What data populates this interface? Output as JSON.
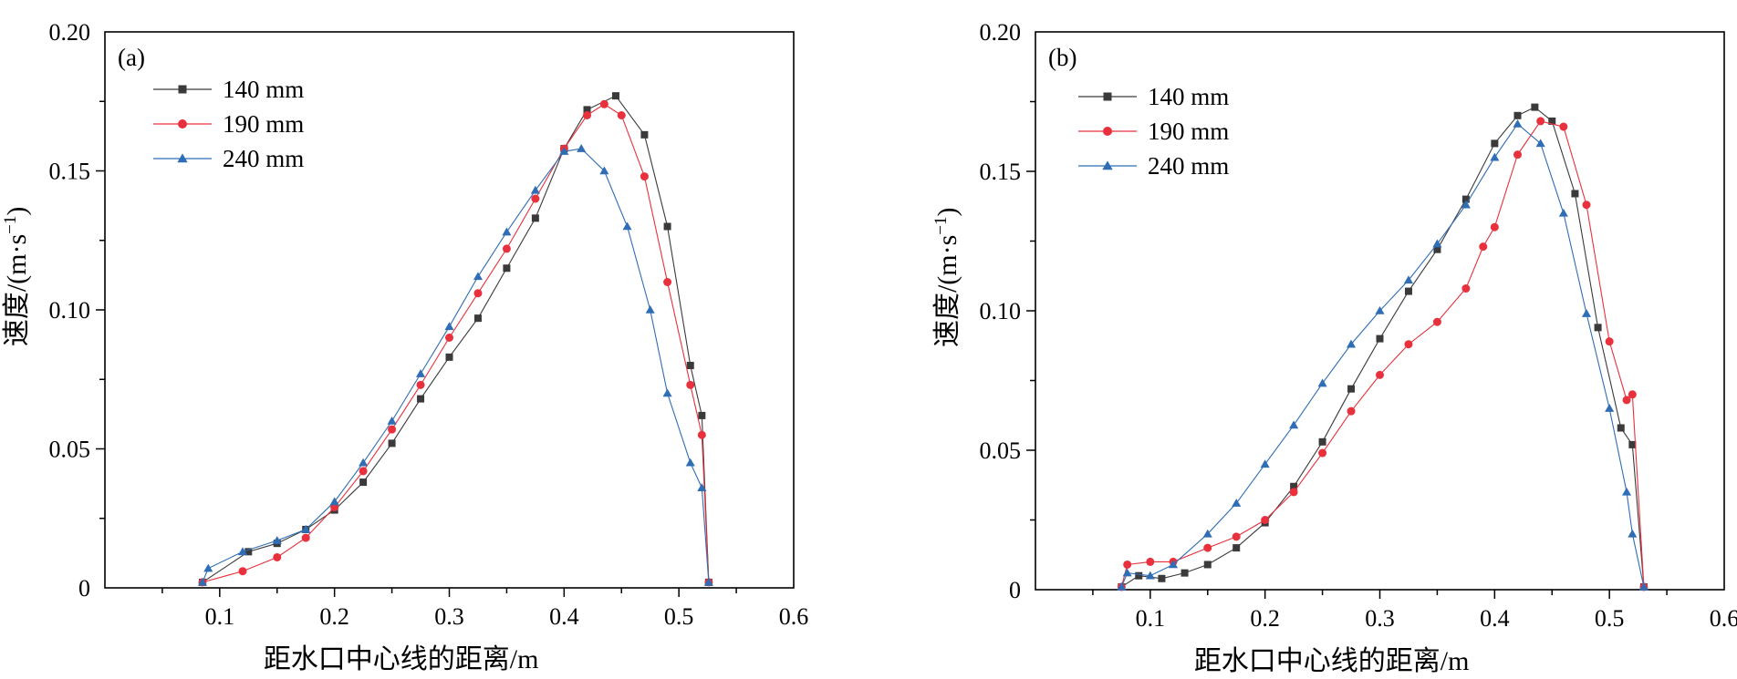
{
  "chart_data": [
    {
      "type": "line",
      "panel_label": "(a)",
      "xlabel": "距水口中心线的距离/m",
      "ylabel": "速度/(m·s⁻¹)",
      "ylabel_main": "速度/(m·s",
      "ylabel_sup": "−1",
      "ylabel_tail": ")",
      "xlim": [
        0,
        0.6
      ],
      "ylim": [
        0,
        0.2
      ],
      "xticks": [
        0.1,
        0.2,
        0.3,
        0.4,
        0.5,
        0.6
      ],
      "xtick_labels": [
        "0.1",
        "0.2",
        "0.3",
        "0.4",
        "0.5",
        "0.6"
      ],
      "yticks": [
        0,
        0.05,
        0.1,
        0.15,
        0.2
      ],
      "ytick_labels": [
        "0",
        "0.05",
        "0.10",
        "0.15",
        "0.20"
      ],
      "legend_position": "top-left",
      "series": [
        {
          "name": "140 mm",
          "color": "#3a3a3a",
          "marker": "square",
          "x": [
            0.085,
            0.125,
            0.15,
            0.175,
            0.2,
            0.225,
            0.25,
            0.275,
            0.3,
            0.325,
            0.35,
            0.375,
            0.4,
            0.42,
            0.445,
            0.47,
            0.49,
            0.51,
            0.52,
            0.526
          ],
          "y": [
            0.002,
            0.013,
            0.016,
            0.021,
            0.028,
            0.038,
            0.052,
            0.068,
            0.083,
            0.097,
            0.115,
            0.133,
            0.158,
            0.172,
            0.177,
            0.163,
            0.13,
            0.08,
            0.062,
            0.002
          ]
        },
        {
          "name": "190 mm",
          "color": "#e8313c",
          "marker": "circle",
          "x": [
            0.085,
            0.12,
            0.15,
            0.175,
            0.2,
            0.225,
            0.25,
            0.275,
            0.3,
            0.325,
            0.35,
            0.375,
            0.4,
            0.42,
            0.435,
            0.45,
            0.47,
            0.49,
            0.51,
            0.52,
            0.526
          ],
          "y": [
            0.002,
            0.006,
            0.011,
            0.018,
            0.029,
            0.042,
            0.057,
            0.073,
            0.09,
            0.106,
            0.122,
            0.14,
            0.158,
            0.17,
            0.174,
            0.17,
            0.148,
            0.11,
            0.073,
            0.055,
            0.002
          ]
        },
        {
          "name": "240 mm",
          "color": "#2f6db5",
          "marker": "triangle",
          "x": [
            0.085,
            0.09,
            0.12,
            0.15,
            0.175,
            0.2,
            0.225,
            0.25,
            0.275,
            0.3,
            0.325,
            0.35,
            0.375,
            0.4,
            0.415,
            0.435,
            0.455,
            0.475,
            0.49,
            0.51,
            0.52,
            0.526
          ],
          "y": [
            0.002,
            0.007,
            0.013,
            0.017,
            0.021,
            0.031,
            0.045,
            0.06,
            0.077,
            0.094,
            0.112,
            0.128,
            0.143,
            0.157,
            0.158,
            0.15,
            0.13,
            0.1,
            0.07,
            0.045,
            0.036,
            0.002
          ]
        }
      ]
    },
    {
      "type": "line",
      "panel_label": "(b)",
      "xlabel": "距水口中心线的距离/m",
      "ylabel": "速度/(m·s⁻¹)",
      "ylabel_main": "速度/(m·s",
      "ylabel_sup": "−1",
      "ylabel_tail": ")",
      "xlim": [
        0,
        0.6
      ],
      "ylim": [
        0,
        0.2
      ],
      "xticks": [
        0.1,
        0.2,
        0.3,
        0.4,
        0.5,
        0.6
      ],
      "xtick_labels": [
        "0.1",
        "0.2",
        "0.3",
        "0.4",
        "0.5",
        "0.6"
      ],
      "yticks": [
        0,
        0.05,
        0.1,
        0.15,
        0.2
      ],
      "ytick_labels": [
        "0",
        "0.05",
        "0.10",
        "0.15",
        "0.20"
      ],
      "legend_position": "top-left",
      "series": [
        {
          "name": "140 mm",
          "color": "#3a3a3a",
          "marker": "square",
          "x": [
            0.075,
            0.09,
            0.11,
            0.13,
            0.15,
            0.175,
            0.2,
            0.225,
            0.25,
            0.275,
            0.3,
            0.325,
            0.35,
            0.375,
            0.4,
            0.42,
            0.435,
            0.45,
            0.47,
            0.49,
            0.51,
            0.52,
            0.53
          ],
          "y": [
            0.001,
            0.005,
            0.004,
            0.006,
            0.009,
            0.015,
            0.024,
            0.037,
            0.053,
            0.072,
            0.09,
            0.107,
            0.122,
            0.14,
            0.16,
            0.17,
            0.173,
            0.168,
            0.142,
            0.094,
            0.058,
            0.052,
            0.001
          ]
        },
        {
          "name": "190 mm",
          "color": "#e8313c",
          "marker": "circle",
          "x": [
            0.075,
            0.08,
            0.1,
            0.12,
            0.15,
            0.175,
            0.2,
            0.225,
            0.25,
            0.275,
            0.3,
            0.325,
            0.35,
            0.375,
            0.39,
            0.4,
            0.42,
            0.44,
            0.46,
            0.48,
            0.5,
            0.515,
            0.52,
            0.53
          ],
          "y": [
            0.001,
            0.009,
            0.01,
            0.01,
            0.015,
            0.019,
            0.025,
            0.035,
            0.049,
            0.064,
            0.077,
            0.088,
            0.096,
            0.108,
            0.123,
            0.13,
            0.156,
            0.168,
            0.166,
            0.138,
            0.089,
            0.068,
            0.07,
            0.001
          ]
        },
        {
          "name": "240 mm",
          "color": "#2f6db5",
          "marker": "triangle",
          "x": [
            0.075,
            0.08,
            0.1,
            0.12,
            0.15,
            0.175,
            0.2,
            0.225,
            0.25,
            0.275,
            0.3,
            0.325,
            0.35,
            0.375,
            0.4,
            0.42,
            0.44,
            0.46,
            0.48,
            0.5,
            0.515,
            0.52,
            0.53
          ],
          "y": [
            0.001,
            0.006,
            0.005,
            0.009,
            0.02,
            0.031,
            0.045,
            0.059,
            0.074,
            0.088,
            0.1,
            0.111,
            0.124,
            0.138,
            0.155,
            0.167,
            0.16,
            0.135,
            0.099,
            0.065,
            0.035,
            0.02,
            0.001
          ]
        }
      ]
    }
  ]
}
